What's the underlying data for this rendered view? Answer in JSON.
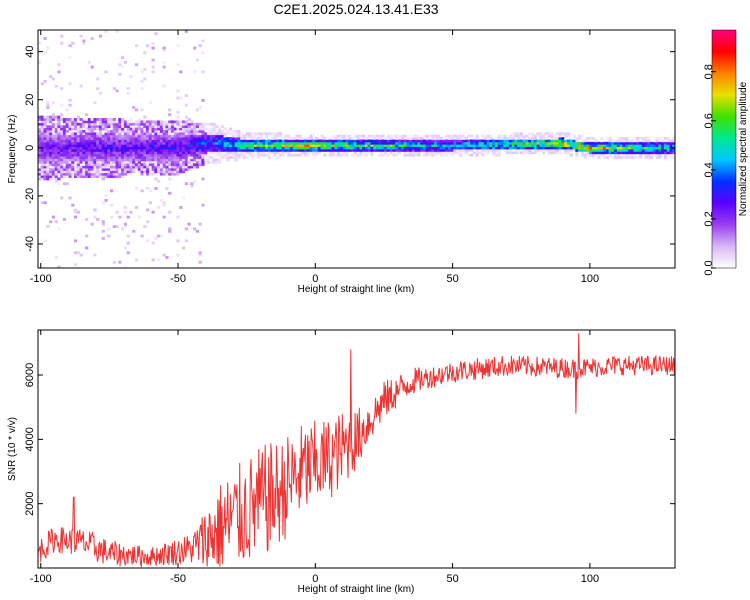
{
  "title": "C2E1.2025.024.13.41.E33",
  "chart_data": [
    {
      "type": "heatmap",
      "xlabel": "Height of straight line (km)",
      "ylabel": "Frequency (Hz)",
      "xlim": [
        -101,
        131
      ],
      "ylim": [
        -50,
        49
      ],
      "x_ticks": [
        -100,
        -50,
        0,
        50,
        100
      ],
      "y_ticks": [
        -40,
        -20,
        0,
        20,
        40
      ],
      "colorbar": {
        "label": "Normalized spectral amplitude",
        "range": [
          0,
          0.97
        ],
        "ticks": [
          0.0,
          0.2,
          0.4,
          0.6,
          0.8
        ],
        "colors": [
          "#ffffff",
          "#d9b8f5",
          "#9b3df0",
          "#5a00ff",
          "#0030ff",
          "#00c8ff",
          "#00e890",
          "#40e000",
          "#e8e000",
          "#ff8000",
          "#ff0000",
          "#ff0080"
        ]
      },
      "ridge": [
        {
          "x": -100,
          "center": 0,
          "halfwidth": 6,
          "amplitude": 0.3
        },
        {
          "x": -50,
          "center": 0,
          "halfwidth": 5,
          "amplitude": 0.35
        },
        {
          "x": -40,
          "center": 2,
          "halfwidth": 4,
          "amplitude": 0.45
        },
        {
          "x": -25,
          "center": 1,
          "halfwidth": 2.5,
          "amplitude": 0.7
        },
        {
          "x": 0,
          "center": 1,
          "halfwidth": 2,
          "amplitude": 0.85
        },
        {
          "x": 50,
          "center": 1,
          "halfwidth": 2,
          "amplitude": 0.55
        },
        {
          "x": 90,
          "center": 2,
          "halfwidth": 2,
          "amplitude": 0.9
        },
        {
          "x": 100,
          "center": 0,
          "halfwidth": 2,
          "amplitude": 0.9
        },
        {
          "x": 131,
          "center": 0,
          "halfwidth": 2,
          "amplitude": 0.6
        }
      ]
    },
    {
      "type": "line",
      "xlabel": "Height of straight line (km)",
      "ylabel": "SNR (10 * v/v)",
      "xlim": [
        -101,
        131
      ],
      "ylim": [
        0,
        7400
      ],
      "x_ticks": [
        -100,
        -50,
        0,
        50,
        100
      ],
      "y_ticks": [
        2000,
        4000,
        6000
      ],
      "color": "#ee3333",
      "trend": [
        {
          "x": -101,
          "y": 500
        },
        {
          "x": -95,
          "y": 900
        },
        {
          "x": -85,
          "y": 800
        },
        {
          "x": -75,
          "y": 450
        },
        {
          "x": -60,
          "y": 350
        },
        {
          "x": -45,
          "y": 600
        },
        {
          "x": -38,
          "y": 1000
        },
        {
          "x": -30,
          "y": 1500
        },
        {
          "x": -20,
          "y": 2000
        },
        {
          "x": -12,
          "y": 2400
        },
        {
          "x": -5,
          "y": 3000
        },
        {
          "x": 5,
          "y": 3400
        },
        {
          "x": 15,
          "y": 4000
        },
        {
          "x": 25,
          "y": 5200
        },
        {
          "x": 35,
          "y": 5800
        },
        {
          "x": 50,
          "y": 6100
        },
        {
          "x": 70,
          "y": 6300
        },
        {
          "x": 95,
          "y": 6200
        },
        {
          "x": 110,
          "y": 6300
        },
        {
          "x": 131,
          "y": 6300
        }
      ],
      "noise": [
        {
          "x": -101,
          "amp": 400
        },
        {
          "x": -80,
          "amp": 450
        },
        {
          "x": -60,
          "amp": 300
        },
        {
          "x": -45,
          "amp": 500
        },
        {
          "x": -35,
          "amp": 1500
        },
        {
          "x": -20,
          "amp": 1800
        },
        {
          "x": -5,
          "amp": 1500
        },
        {
          "x": 10,
          "amp": 1200
        },
        {
          "x": 20,
          "amp": 700
        },
        {
          "x": 40,
          "amp": 350
        },
        {
          "x": 131,
          "amp": 300
        }
      ],
      "spikes": [
        {
          "x": 13,
          "y": 6800
        },
        {
          "x": 96,
          "y": 7300
        },
        {
          "x": 95,
          "y": 4800
        },
        {
          "x": -88,
          "y": 2200
        }
      ]
    }
  ]
}
